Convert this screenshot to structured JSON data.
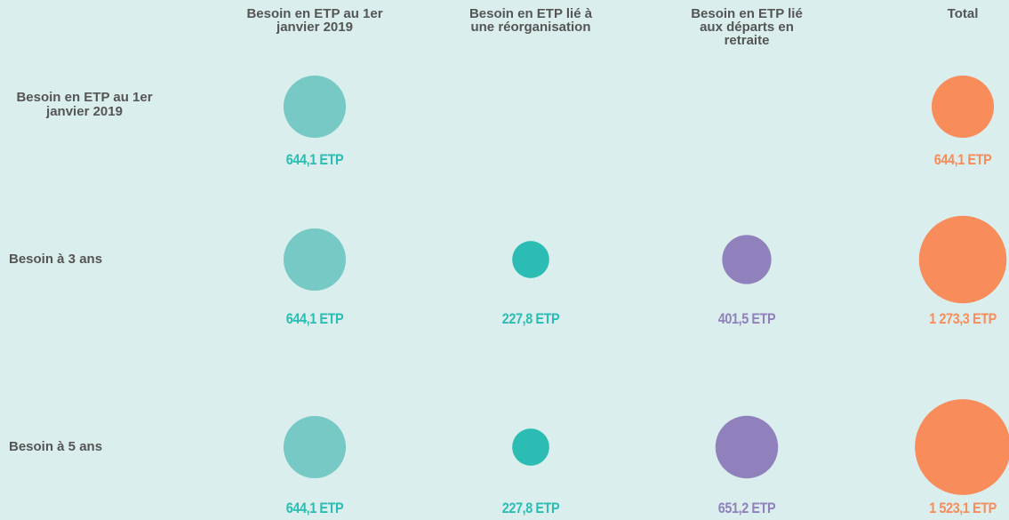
{
  "chart_data": {
    "type": "bubble-matrix",
    "columns": [
      "Besoin en ETP au 1er janvier 2019",
      "Besoin en ETP lié à une réorganisation",
      "Besoin en ETP lié aux départs en retraite",
      "Total"
    ],
    "colors": [
      "#76c9c4",
      "#2bbdb3",
      "#9080bb",
      "#f88c5a"
    ],
    "label_colors": [
      "#2bbdb3",
      "#2bbdb3",
      "#9080bb",
      "#f88c5a"
    ],
    "series": [
      {
        "name": "Besoin en ETP au 1er janvier 2019",
        "values": [
          644.1,
          null,
          null,
          644.1
        ],
        "value_labels": [
          "644,1 ETP",
          null,
          null,
          "644,1 ETP"
        ]
      },
      {
        "name": "Besoin à 3 ans",
        "values": [
          644.1,
          227.8,
          401.5,
          1273.3
        ],
        "value_labels": [
          "644,1 ETP",
          "227,8 ETP",
          "401,5 ETP",
          "1 273,3 ETP"
        ]
      },
      {
        "name": "Besoin à 5 ans",
        "values": [
          644.1,
          227.8,
          651.2,
          1523.1
        ],
        "value_labels": [
          "644,1 ETP",
          "227,8 ETP",
          "651,2 ETP",
          "1 523,1 ETP"
        ]
      }
    ]
  }
}
